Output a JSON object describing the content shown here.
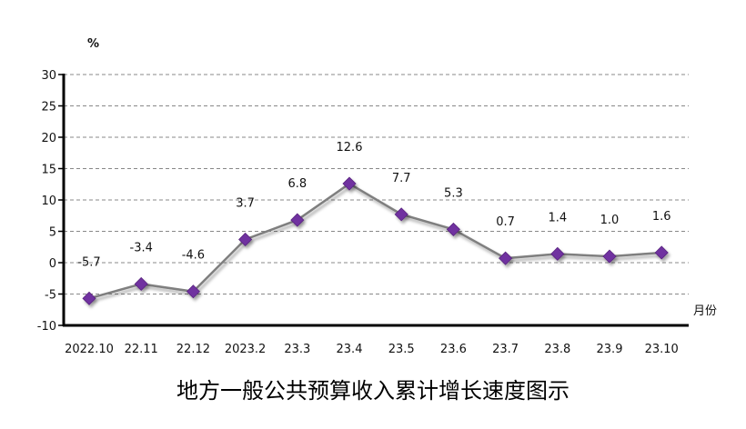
{
  "chart_data": {
    "type": "line",
    "title": "地方一般公共预算收入累计增长速度图示",
    "ylabel": "%",
    "xlabel": "月份",
    "categories": [
      "2022.10",
      "22.11",
      "22.12",
      "2023.2",
      "23.3",
      "23.4",
      "23.5",
      "23.6",
      "23.7",
      "23.8",
      "23.9",
      "23.10"
    ],
    "series": [
      {
        "name": "累计增长速度",
        "values": [
          -5.7,
          -3.4,
          -4.6,
          3.7,
          6.8,
          12.6,
          7.7,
          5.3,
          0.7,
          1.4,
          1.0,
          1.6
        ]
      }
    ],
    "data_labels": [
      "-5.7",
      "-3.4",
      "-4.6",
      "3.7",
      "6.8",
      "12.6",
      "7.7",
      "5.3",
      "0.7",
      "1.4",
      "1.0",
      "1.6"
    ],
    "ylim": [
      -10,
      30
    ],
    "yticks": [
      -10,
      -5,
      0,
      5,
      10,
      15,
      20,
      25,
      30
    ],
    "grid": true,
    "colors": {
      "line": "#7f7f7f",
      "marker": "#7030a0",
      "grid": "#888888",
      "axis": "#000000"
    }
  }
}
